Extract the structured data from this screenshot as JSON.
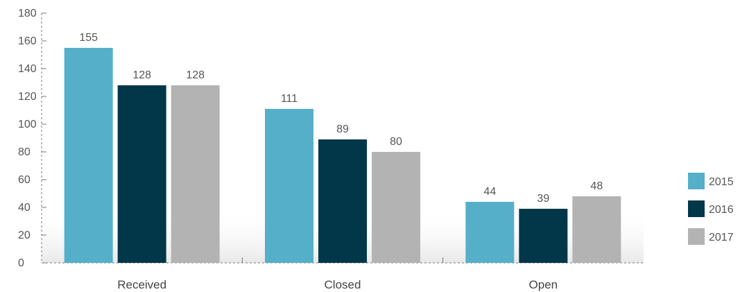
{
  "chart_data": {
    "type": "bar",
    "categories": [
      "Received",
      "Closed",
      "Open"
    ],
    "series": [
      {
        "name": "2015",
        "color": "#56AFC9",
        "values": [
          155,
          111,
          44
        ]
      },
      {
        "name": "2016",
        "color": "#02374A",
        "values": [
          128,
          89,
          39
        ]
      },
      {
        "name": "2017",
        "color": "#B3B3B3",
        "values": [
          128,
          80,
          48
        ]
      }
    ],
    "yticks": [
      0,
      20,
      40,
      60,
      80,
      100,
      120,
      140,
      160,
      180
    ],
    "ylim": [
      0,
      180
    ],
    "legend_position": "right",
    "grid": false
  }
}
